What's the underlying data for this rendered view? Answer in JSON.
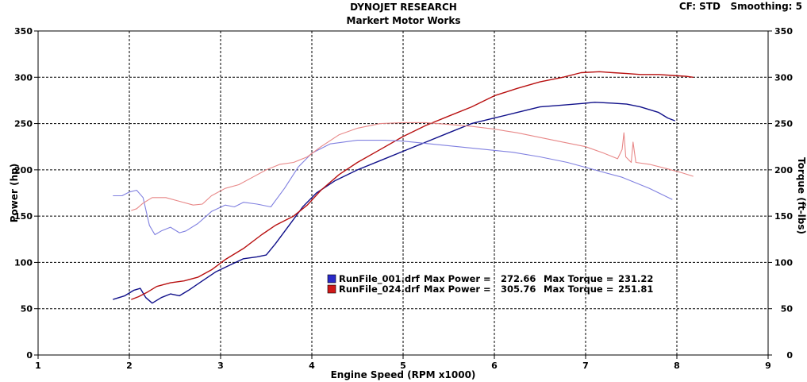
{
  "header": {
    "title": "DYNOJET RESEARCH",
    "subtitle": "Markert Motor Works",
    "corner_info": "CF: STD   Smoothing: 5"
  },
  "chart_data": {
    "type": "line",
    "xlabel": "Engine Speed (RPM x1000)",
    "ylabel_left": "Power (hp)",
    "ylabel_right": "Torque (ft-lbs)",
    "xlim": [
      1,
      9
    ],
    "ylim": [
      0,
      350
    ],
    "x_ticks": [
      1,
      2,
      3,
      4,
      5,
      6,
      7,
      8,
      9
    ],
    "y_ticks": [
      0,
      50,
      100,
      150,
      200,
      250,
      300,
      350
    ],
    "grid": true,
    "legend": [
      {
        "file": "RunFile_001.drf",
        "power_label": "Max Power =",
        "max_power": "272.66",
        "torque_label": "Max Torque =",
        "max_torque": "231.22",
        "color": "#2a2ac8"
      },
      {
        "file": "RunFile_024.drf",
        "power_label": "Max Power =",
        "max_power": "305.76",
        "torque_label": "Max Torque =",
        "max_torque": "251.81",
        "color": "#d01818"
      }
    ],
    "series": [
      {
        "run": "RunFile_001.drf",
        "kind": "power",
        "color": "#10108a",
        "points": [
          [
            1.82,
            60
          ],
          [
            1.95,
            64
          ],
          [
            2.05,
            70
          ],
          [
            2.12,
            72
          ],
          [
            2.18,
            62
          ],
          [
            2.25,
            56
          ],
          [
            2.35,
            62
          ],
          [
            2.45,
            66
          ],
          [
            2.55,
            64
          ],
          [
            2.65,
            70
          ],
          [
            2.8,
            80
          ],
          [
            2.95,
            90
          ],
          [
            3.1,
            97
          ],
          [
            3.25,
            104
          ],
          [
            3.4,
            106
          ],
          [
            3.5,
            108
          ],
          [
            3.6,
            120
          ],
          [
            3.75,
            140
          ],
          [
            3.9,
            160
          ],
          [
            4.05,
            175
          ],
          [
            4.25,
            188
          ],
          [
            4.5,
            200
          ],
          [
            4.75,
            210
          ],
          [
            5.0,
            220
          ],
          [
            5.25,
            230
          ],
          [
            5.5,
            240
          ],
          [
            5.75,
            250
          ],
          [
            6.0,
            256
          ],
          [
            6.25,
            262
          ],
          [
            6.5,
            268
          ],
          [
            6.75,
            270
          ],
          [
            7.0,
            272
          ],
          [
            7.1,
            273
          ],
          [
            7.3,
            272
          ],
          [
            7.45,
            271
          ],
          [
            7.6,
            268
          ],
          [
            7.8,
            262
          ],
          [
            7.9,
            256
          ],
          [
            7.98,
            253
          ]
        ]
      },
      {
        "run": "RunFile_024.drf",
        "kind": "power",
        "color": "#b81010",
        "points": [
          [
            2.02,
            60
          ],
          [
            2.1,
            63
          ],
          [
            2.2,
            68
          ],
          [
            2.3,
            74
          ],
          [
            2.45,
            78
          ],
          [
            2.6,
            80
          ],
          [
            2.75,
            84
          ],
          [
            2.9,
            92
          ],
          [
            3.05,
            103
          ],
          [
            3.25,
            115
          ],
          [
            3.45,
            130
          ],
          [
            3.6,
            140
          ],
          [
            3.8,
            150
          ],
          [
            3.95,
            162
          ],
          [
            4.1,
            178
          ],
          [
            4.3,
            195
          ],
          [
            4.5,
            208
          ],
          [
            4.75,
            222
          ],
          [
            5.0,
            236
          ],
          [
            5.25,
            248
          ],
          [
            5.5,
            258
          ],
          [
            5.75,
            268
          ],
          [
            6.0,
            280
          ],
          [
            6.25,
            288
          ],
          [
            6.5,
            295
          ],
          [
            6.75,
            300
          ],
          [
            6.95,
            305
          ],
          [
            7.15,
            306
          ],
          [
            7.3,
            305
          ],
          [
            7.45,
            304
          ],
          [
            7.6,
            303
          ],
          [
            7.8,
            303
          ],
          [
            7.95,
            302
          ],
          [
            8.1,
            301
          ],
          [
            8.18,
            300
          ]
        ]
      },
      {
        "run": "RunFile_001.drf",
        "kind": "torque",
        "color": "#8080e0",
        "points": [
          [
            1.82,
            172
          ],
          [
            1.92,
            172
          ],
          [
            2.0,
            176
          ],
          [
            2.08,
            178
          ],
          [
            2.15,
            170
          ],
          [
            2.22,
            140
          ],
          [
            2.28,
            130
          ],
          [
            2.35,
            134
          ],
          [
            2.45,
            138
          ],
          [
            2.55,
            132
          ],
          [
            2.62,
            134
          ],
          [
            2.75,
            142
          ],
          [
            2.9,
            155
          ],
          [
            3.05,
            162
          ],
          [
            3.15,
            160
          ],
          [
            3.25,
            165
          ],
          [
            3.4,
            163
          ],
          [
            3.55,
            160
          ],
          [
            3.7,
            180
          ],
          [
            3.85,
            203
          ],
          [
            4.0,
            218
          ],
          [
            4.2,
            228
          ],
          [
            4.5,
            232
          ],
          [
            4.8,
            232
          ],
          [
            5.0,
            231
          ],
          [
            5.3,
            228
          ],
          [
            5.6,
            225
          ],
          [
            5.9,
            222
          ],
          [
            6.2,
            219
          ],
          [
            6.5,
            214
          ],
          [
            6.8,
            208
          ],
          [
            7.1,
            200
          ],
          [
            7.4,
            192
          ],
          [
            7.7,
            180
          ],
          [
            7.95,
            168
          ]
        ]
      },
      {
        "run": "RunFile_024.drf",
        "kind": "torque",
        "color": "#e88888",
        "points": [
          [
            2.02,
            156
          ],
          [
            2.08,
            158
          ],
          [
            2.15,
            164
          ],
          [
            2.25,
            170
          ],
          [
            2.4,
            170
          ],
          [
            2.55,
            166
          ],
          [
            2.7,
            162
          ],
          [
            2.8,
            163
          ],
          [
            2.9,
            172
          ],
          [
            3.05,
            180
          ],
          [
            3.2,
            184
          ],
          [
            3.35,
            192
          ],
          [
            3.5,
            200
          ],
          [
            3.65,
            206
          ],
          [
            3.8,
            208
          ],
          [
            3.95,
            214
          ],
          [
            4.1,
            225
          ],
          [
            4.3,
            238
          ],
          [
            4.5,
            245
          ],
          [
            4.75,
            250
          ],
          [
            5.0,
            251
          ],
          [
            5.25,
            251
          ],
          [
            5.5,
            249
          ],
          [
            5.75,
            247
          ],
          [
            6.0,
            244
          ],
          [
            6.25,
            240
          ],
          [
            6.5,
            235
          ],
          [
            6.75,
            230
          ],
          [
            7.0,
            225
          ],
          [
            7.2,
            218
          ],
          [
            7.35,
            212
          ],
          [
            7.4,
            222
          ],
          [
            7.42,
            240
          ],
          [
            7.44,
            214
          ],
          [
            7.5,
            208
          ],
          [
            7.52,
            230
          ],
          [
            7.55,
            208
          ],
          [
            7.7,
            206
          ],
          [
            7.9,
            201
          ],
          [
            8.05,
            197
          ],
          [
            8.18,
            193
          ]
        ]
      }
    ]
  }
}
